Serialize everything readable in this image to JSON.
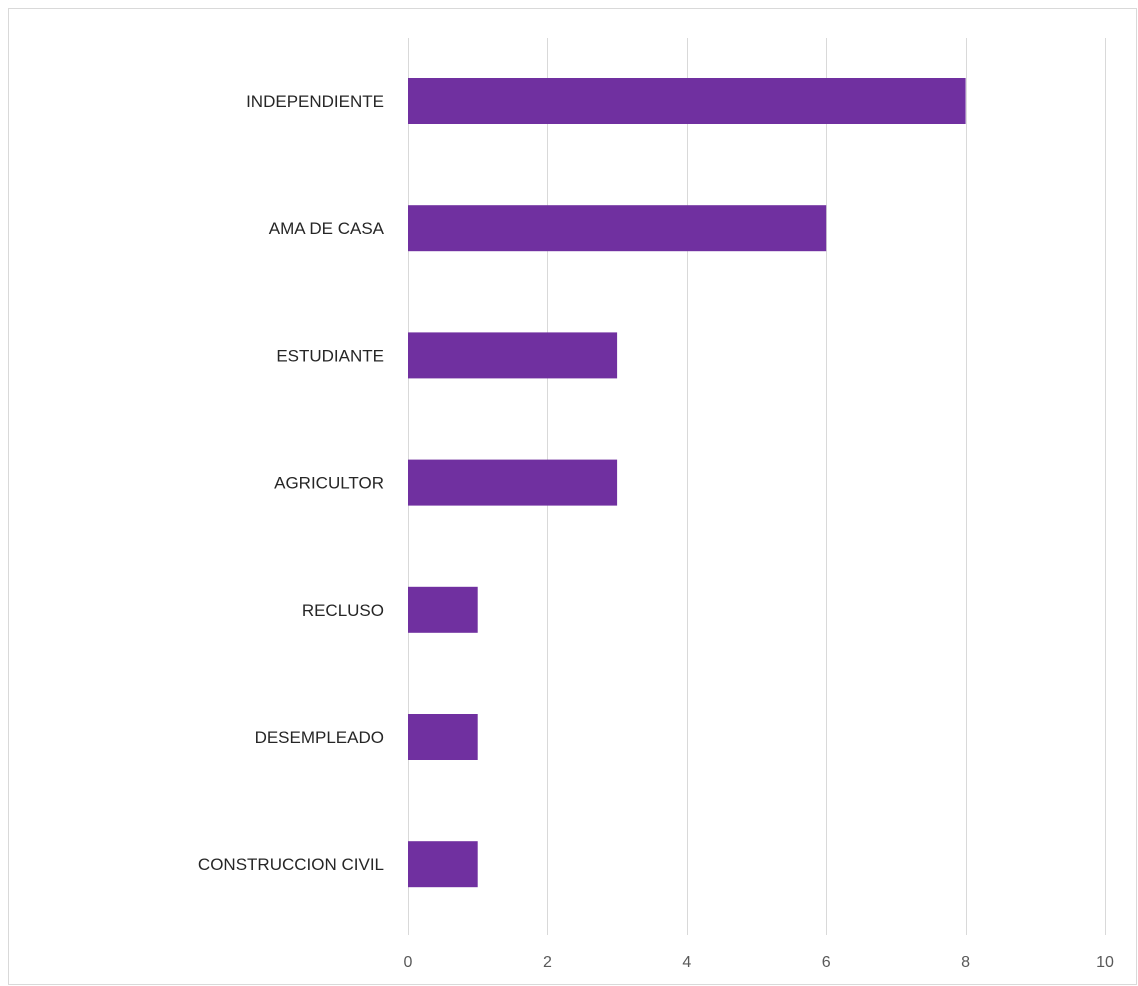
{
  "chart_data": {
    "type": "bar",
    "orientation": "horizontal",
    "title": "",
    "xlabel": "",
    "ylabel": "",
    "categories": [
      "INDEPENDIENTE",
      "AMA DE CASA",
      "ESTUDIANTE",
      "AGRICULTOR",
      "RECLUSO",
      "DESEMPLEADO",
      "CONSTRUCCION CIVIL"
    ],
    "values": [
      8,
      6,
      3,
      3,
      1,
      1,
      1
    ],
    "xlim": [
      0,
      10
    ],
    "xticks": [
      0,
      2,
      4,
      6,
      8,
      10
    ],
    "grid": "vertical",
    "legend": "none",
    "bar_color": "#7030a0",
    "grid_color": "#d9d9d9"
  }
}
